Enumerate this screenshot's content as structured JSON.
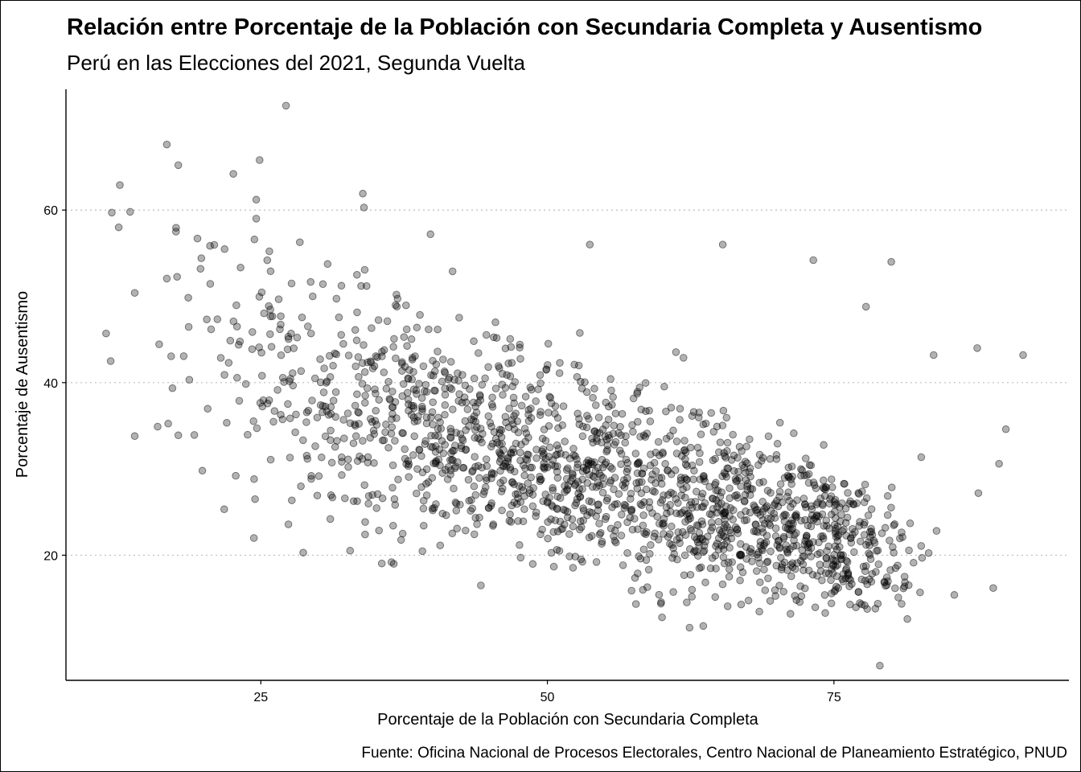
{
  "chart_data": {
    "type": "scatter",
    "title": "Relación entre Porcentaje de la Población con Secundaria Completa y Ausentismo",
    "subtitle": "Perú en las Elecciones del 2021, Segunda Vuelta",
    "xlabel": "Porcentaje de la Población con Secundaria Completa",
    "ylabel": "Porcentaje de Ausentismo",
    "caption": "Fuente: Oficina Nacional de Procesos Electorales, Centro Nacional de Planeamiento Estratégico, PNUD",
    "xlim": [
      8,
      95.5
    ],
    "ylim": [
      5.5,
      74
    ],
    "x_ticks": [
      25,
      50,
      75
    ],
    "y_ticks": [
      20,
      40,
      60
    ],
    "y_grid": true,
    "x_grid": false,
    "point_color": "#000000",
    "point_opacity": 0.3,
    "points_estimated": true,
    "highlight_points": [
      [
        27.2,
        72.1
      ],
      [
        16.8,
        67.6
      ],
      [
        17.8,
        65.2
      ],
      [
        24.9,
        65.8
      ],
      [
        22.6,
        64.2
      ],
      [
        12.7,
        62.9
      ],
      [
        12.0,
        59.7
      ],
      [
        13.6,
        59.8
      ],
      [
        12.6,
        58.0
      ],
      [
        24.6,
        61.2
      ],
      [
        24.6,
        59.0
      ],
      [
        33.9,
        61.9
      ],
      [
        34.0,
        60.3
      ],
      [
        17.6,
        57.5
      ],
      [
        14.0,
        50.4
      ],
      [
        11.5,
        45.7
      ],
      [
        11.9,
        42.5
      ],
      [
        14.0,
        33.8
      ],
      [
        16.0,
        34.9
      ],
      [
        17.8,
        33.9
      ],
      [
        19.9,
        29.8
      ],
      [
        24.5,
        26.5
      ],
      [
        24.4,
        22.0
      ],
      [
        28.7,
        20.3
      ],
      [
        39.8,
        57.2
      ],
      [
        53.7,
        56.0
      ],
      [
        65.3,
        56.0
      ],
      [
        73.2,
        54.2
      ],
      [
        80.0,
        54.0
      ],
      [
        91.5,
        43.2
      ],
      [
        87.5,
        44.0
      ],
      [
        90.0,
        34.6
      ],
      [
        89.4,
        30.6
      ],
      [
        88.9,
        16.2
      ],
      [
        87.6,
        27.2
      ],
      [
        85.5,
        15.4
      ],
      [
        79.0,
        7.2
      ],
      [
        62.4,
        11.6
      ],
      [
        63.6,
        11.8
      ],
      [
        60.0,
        12.8
      ],
      [
        81.4,
        12.6
      ],
      [
        44.2,
        16.5
      ],
      [
        36.4,
        19.2
      ],
      [
        77.8,
        48.8
      ],
      [
        83.7,
        43.2
      ]
    ],
    "cloud_clusters": [
      {
        "cx": 33.0,
        "cy": 38.0,
        "sx": 5.2,
        "sy": 7.6,
        "n": 290,
        "xmin": 18.0,
        "xmax": 48.0,
        "ymin": 18.5,
        "ymax": 57.0
      },
      {
        "cx": 45.5,
        "cy": 33.0,
        "sx": 5.4,
        "sy": 5.8,
        "n": 380,
        "xmin": 33.0,
        "xmax": 58.0,
        "ymin": 16.0,
        "ymax": 51.0
      },
      {
        "cx": 56.0,
        "cy": 29.0,
        "sx": 4.8,
        "sy": 6.2,
        "n": 360,
        "xmin": 45.0,
        "xmax": 67.0,
        "ymin": 13.5,
        "ymax": 52.5
      },
      {
        "cx": 66.5,
        "cy": 24.5,
        "sx": 4.4,
        "sy": 5.2,
        "n": 360,
        "xmin": 57.0,
        "xmax": 76.0,
        "ymin": 12.5,
        "ymax": 48.0
      },
      {
        "cx": 75.5,
        "cy": 21.5,
        "sx": 3.8,
        "sy": 4.1,
        "n": 300,
        "xmin": 67.0,
        "xmax": 84.0,
        "ymin": 13.5,
        "ymax": 38.0
      },
      {
        "cx": 21.5,
        "cy": 47.0,
        "sx": 4.0,
        "sy": 7.0,
        "n": 45,
        "xmin": 15.0,
        "xmax": 29.0,
        "ymin": 29.0,
        "ymax": 58.0
      }
    ]
  }
}
